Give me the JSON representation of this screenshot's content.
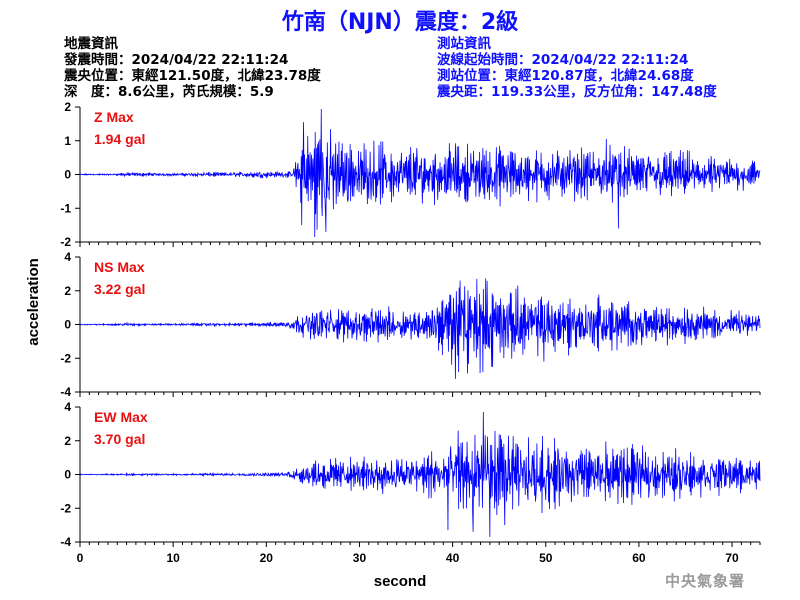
{
  "title": "竹南（NJN）震度：2級",
  "quake_info": {
    "heading": "地震資訊",
    "time": "發震時間：2024/04/22 22:11:24",
    "epicenter": "震央位置：東經121.50度，北緯23.78度",
    "depth_magnitude": "深　度：8.6公里，芮氏規模：5.9"
  },
  "station_info": {
    "heading": "測站資訊",
    "wave_start": "波線起始時間：2024/04/22 22:11:24",
    "location": "測站位置：東經120.87度，北緯24.68度",
    "distance": "震央距：119.33公里，反方位角：147.48度"
  },
  "agency": "中央氣象署",
  "colors": {
    "title": "#1010ff",
    "trace": "#0000ff",
    "panel_label": "#e81010",
    "agency": "#9a9a9a"
  },
  "chart_data": {
    "type": "line",
    "xlabel": "second",
    "ylabel": "acceleration",
    "xlim": [
      0,
      73
    ],
    "xticks": [
      0,
      10,
      20,
      30,
      40,
      50,
      60,
      70
    ],
    "series": [
      {
        "name": "Z Max",
        "max_label": "1.94 gal",
        "max_value": 1.94,
        "ylim": [
          -2,
          2
        ],
        "yticks": [
          -2,
          -1,
          0,
          1,
          2
        ],
        "envelope": {
          "t": [
            0,
            4,
            5,
            6,
            8,
            10,
            12,
            14,
            16,
            18,
            19,
            20,
            21,
            22,
            22.8,
            23.2,
            24,
            25,
            26,
            27,
            28,
            30,
            32,
            34,
            36,
            38,
            40,
            42,
            44,
            46,
            48,
            50,
            52,
            54,
            56,
            58,
            60,
            62,
            64,
            66,
            68,
            70,
            72,
            73
          ],
          "amp": [
            0.02,
            0.03,
            0.08,
            0.06,
            0.05,
            0.04,
            0.06,
            0.08,
            0.07,
            0.1,
            0.14,
            0.12,
            0.1,
            0.1,
            0.1,
            0.6,
            1.2,
            1.6,
            1.9,
            1.5,
            1.3,
            1.0,
            1.0,
            0.9,
            0.95,
            0.9,
            0.95,
            0.9,
            1.0,
            0.9,
            0.8,
            0.85,
            0.8,
            0.8,
            0.9,
            0.85,
            0.8,
            0.9,
            0.75,
            0.7,
            0.6,
            0.55,
            0.5,
            0.4
          ]
        },
        "peaks": [
          {
            "t": 25.9,
            "v": 1.94
          },
          {
            "t": 25.2,
            "v": -1.85
          },
          {
            "t": 24.0,
            "v": 1.55
          },
          {
            "t": 23.8,
            "v": -1.5
          },
          {
            "t": 26.4,
            "v": -1.7
          },
          {
            "t": 57.8,
            "v": -1.6
          },
          {
            "t": 56.5,
            "v": 1.05
          }
        ]
      },
      {
        "name": "NS Max",
        "max_label": "3.22 gal",
        "max_value": 3.22,
        "ylim": [
          -4,
          4
        ],
        "yticks": [
          -4,
          -2,
          0,
          2,
          4
        ],
        "envelope": {
          "t": [
            0,
            4,
            5,
            6,
            8,
            10,
            14,
            16,
            18,
            20,
            22,
            23,
            24,
            26,
            28,
            30,
            32,
            34,
            36,
            38,
            39,
            40,
            41,
            42,
            43,
            44,
            45,
            46,
            48,
            50,
            52,
            54,
            56,
            58,
            60,
            62,
            64,
            66,
            68,
            70,
            72,
            73
          ],
          "amp": [
            0.04,
            0.05,
            0.12,
            0.08,
            0.06,
            0.06,
            0.1,
            0.08,
            0.12,
            0.15,
            0.2,
            0.5,
            0.8,
            1.2,
            1.1,
            1.0,
            1.3,
            1.0,
            1.0,
            1.3,
            2.0,
            2.8,
            2.9,
            2.6,
            2.9,
            2.6,
            2.3,
            2.2,
            2.0,
            1.8,
            2.0,
            1.6,
            1.8,
            1.6,
            1.4,
            1.3,
            1.2,
            1.1,
            1.0,
            0.9,
            0.7,
            0.5
          ]
        },
        "peaks": [
          {
            "t": 40.3,
            "v": -3.22
          },
          {
            "t": 40.8,
            "v": 2.6
          },
          {
            "t": 41.6,
            "v": -2.9
          },
          {
            "t": 42.6,
            "v": 2.7
          },
          {
            "t": 47.0,
            "v": 2.3
          },
          {
            "t": 44.2,
            "v": -2.5
          },
          {
            "t": 49.8,
            "v": -2.2
          }
        ]
      },
      {
        "name": "EW Max",
        "max_label": "3.70 gal",
        "max_value": 3.7,
        "ylim": [
          -4,
          4
        ],
        "yticks": [
          -4,
          -2,
          0,
          2,
          4
        ],
        "envelope": {
          "t": [
            0,
            4,
            5,
            6,
            8,
            10,
            14,
            16,
            18,
            20,
            22,
            23,
            24,
            26,
            28,
            30,
            32,
            34,
            36,
            38,
            40,
            42,
            43,
            44,
            45,
            46,
            48,
            50,
            52,
            54,
            56,
            58,
            60,
            62,
            64,
            66,
            68,
            70,
            72,
            73
          ],
          "amp": [
            0.03,
            0.04,
            0.1,
            0.07,
            0.06,
            0.06,
            0.08,
            0.08,
            0.1,
            0.12,
            0.15,
            0.4,
            0.7,
            1.1,
            1.1,
            1.0,
            1.2,
            1.2,
            1.3,
            1.6,
            2.2,
            2.5,
            3.0,
            3.0,
            2.6,
            2.3,
            2.2,
            2.3,
            2.0,
            2.0,
            2.0,
            1.8,
            1.8,
            1.6,
            1.6,
            1.4,
            1.3,
            1.2,
            1.0,
            0.8
          ]
        },
        "peaks": [
          {
            "t": 43.3,
            "v": 3.7
          },
          {
            "t": 44.0,
            "v": -3.7
          },
          {
            "t": 39.5,
            "v": -3.3
          },
          {
            "t": 42.2,
            "v": -3.4
          },
          {
            "t": 40.6,
            "v": 2.6
          },
          {
            "t": 45.6,
            "v": -3.0
          },
          {
            "t": 46.0,
            "v": 2.3
          }
        ]
      }
    ]
  }
}
